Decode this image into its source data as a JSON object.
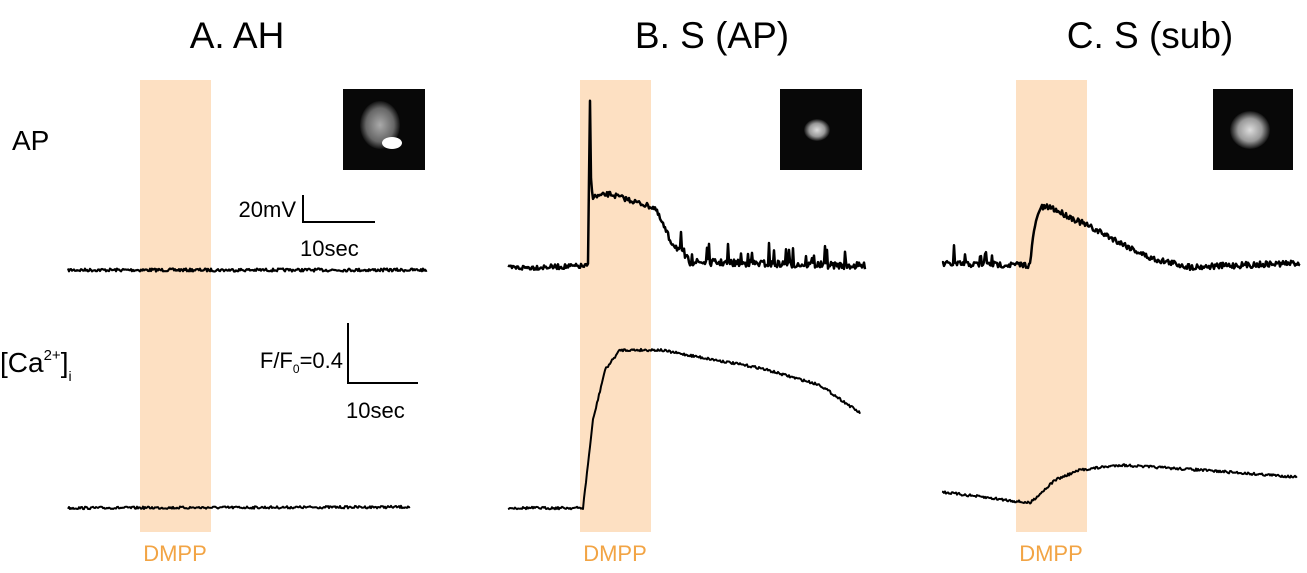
{
  "panels": [
    {
      "title": "A. AH",
      "stimulus": "DMPP"
    },
    {
      "title": "B. S (AP)",
      "stimulus": "DMPP"
    },
    {
      "title": "C. S (sub)",
      "stimulus": "DMPP"
    }
  ],
  "row_labels": {
    "voltage": "AP",
    "calcium": {
      "main": "[Ca",
      "superscript": "2+",
      "close": "]",
      "subscript": "i"
    }
  },
  "scale_bars": {
    "voltage": {
      "y_label": "20mV",
      "x_label": "10sec"
    },
    "calcium": {
      "y_label_main": "F/F",
      "y_label_subscript": "0",
      "y_label_rest": "=0.4",
      "x_label": "10sec"
    }
  }
}
